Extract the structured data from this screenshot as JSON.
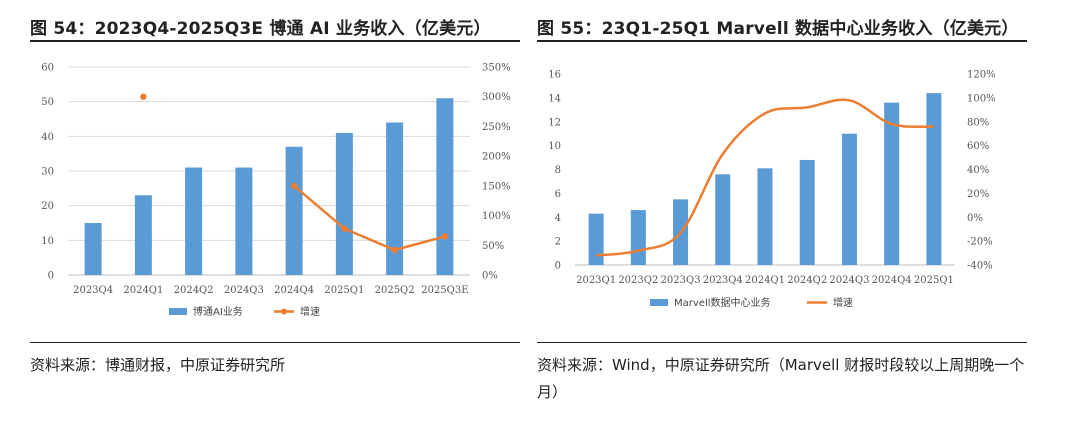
{
  "figures": [
    {
      "title": "图 54：2023Q4-2025Q3E 博通 AI 业务收入（亿美元）",
      "source": "资料来源：博通财报，中原证券研究所"
    },
    {
      "title": "图 55：23Q1-25Q1 Marvell 数据中心业务收入（亿美元）",
      "source": "资料来源：Wind，中原证券研究所（Marvell 财报时段较以上周期晚一个月）"
    }
  ],
  "colors": {
    "bar": "#5B9BD5",
    "line": "#ED7D31",
    "grid": "#d9d9d9"
  },
  "chart_data": [
    {
      "type": "bar",
      "categories": [
        "2023Q4",
        "2024Q1",
        "2024Q2",
        "2024Q3",
        "2024Q4",
        "2025Q1",
        "2025Q2",
        "2025Q3E"
      ],
      "series": [
        {
          "name": "博通AI业务",
          "type": "bar",
          "axis": "left",
          "values": [
            15,
            23,
            31,
            31,
            37,
            41,
            44,
            51
          ]
        },
        {
          "name": "增速",
          "type": "line",
          "axis": "right",
          "unit": "%",
          "values": [
            null,
            300,
            null,
            null,
            150,
            78,
            42,
            65
          ]
        }
      ],
      "ylim": [
        0,
        60
      ],
      "yticks": [
        0,
        10,
        20,
        30,
        40,
        50,
        60
      ],
      "y2lim": [
        0,
        350
      ],
      "y2ticks": [
        "0%",
        "50%",
        "100%",
        "150%",
        "200%",
        "250%",
        "300%",
        "350%"
      ],
      "grid": true,
      "legend": "bottom"
    },
    {
      "type": "bar",
      "categories": [
        "2023Q1",
        "2023Q2",
        "2023Q3",
        "2023Q4",
        "2024Q1",
        "2024Q2",
        "2024Q3",
        "2024Q4",
        "2025Q1"
      ],
      "series": [
        {
          "name": "Marvell数据中心业务",
          "type": "bar",
          "axis": "left",
          "values": [
            4.3,
            4.6,
            5.5,
            7.6,
            8.1,
            8.8,
            11.0,
            13.6,
            14.4
          ]
        },
        {
          "name": "增速",
          "type": "line",
          "axis": "right",
          "unit": "%",
          "values": [
            -32,
            -28,
            -13,
            53,
            87,
            92,
            98,
            78,
            76
          ]
        }
      ],
      "ylim": [
        0,
        16
      ],
      "yticks": [
        0,
        2,
        4,
        6,
        8,
        10,
        12,
        14,
        16
      ],
      "y2lim": [
        -40,
        120
      ],
      "y2ticks": [
        "-40%",
        "-20%",
        "0%",
        "20%",
        "40%",
        "60%",
        "80%",
        "100%",
        "120%"
      ],
      "grid": false,
      "legend": "bottom"
    }
  ]
}
